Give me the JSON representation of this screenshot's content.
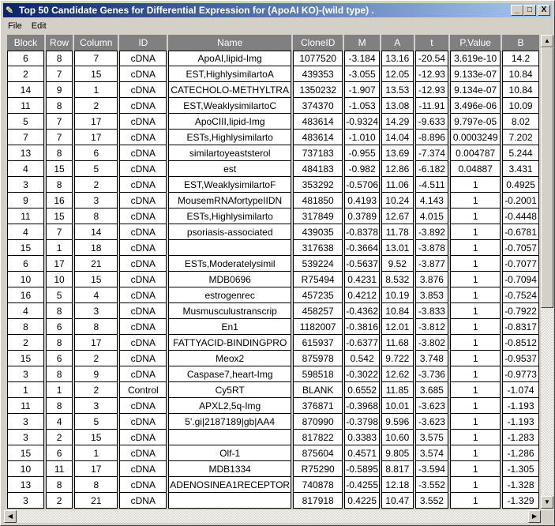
{
  "window": {
    "title": "Top 50 Candidate Genes for Differential Expression for (ApoAI KO)-(wild type) .",
    "buttons": {
      "minimize": "_",
      "maximize": "□",
      "close": "X"
    }
  },
  "menu": [
    "File",
    "Edit"
  ],
  "table": {
    "columns": [
      "Block",
      "Row",
      "Column",
      "ID",
      "Name",
      "CloneID",
      "M",
      "A",
      "t",
      "P.Value",
      "B"
    ],
    "rows": [
      [
        "6",
        "8",
        "7",
        "cDNA",
        "ApoAI,lipid-Img",
        "1077520",
        "-3.184",
        "13.16",
        "-20.54",
        "3.619e-10",
        "14.2"
      ],
      [
        "2",
        "7",
        "15",
        "cDNA",
        "EST,HighlysimilartoA",
        "439353",
        "-3.055",
        "12.05",
        "-12.93",
        "9.133e-07",
        "10.84"
      ],
      [
        "14",
        "9",
        "1",
        "cDNA",
        "CATECHOLO-METHYLTRA",
        "1350232",
        "-1.907",
        "13.53",
        "-12.93",
        "9.134e-07",
        "10.84"
      ],
      [
        "11",
        "8",
        "2",
        "cDNA",
        "EST,WeaklysimilartoC",
        "374370",
        "-1.053",
        "13.08",
        "-11.91",
        "3.496e-06",
        "10.09"
      ],
      [
        "5",
        "7",
        "17",
        "cDNA",
        "ApoCIII,lipid-Img",
        "483614",
        "-0.9324",
        "14.29",
        "-9.633",
        "9.797e-05",
        "8.02"
      ],
      [
        "7",
        "7",
        "17",
        "cDNA",
        "ESTs,Highlysimilarto",
        "483614",
        "-1.010",
        "14.04",
        "-8.896",
        "0.0003249",
        "7.202"
      ],
      [
        "13",
        "8",
        "6",
        "cDNA",
        "similartoyeaststerol",
        "737183",
        "-0.955",
        "13.69",
        "-7.374",
        "0.004787",
        "5.244"
      ],
      [
        "4",
        "15",
        "5",
        "cDNA",
        "est",
        "484183",
        "-0.982",
        "12.86",
        "-6.182",
        "0.04887",
        "3.431"
      ],
      [
        "3",
        "8",
        "2",
        "cDNA",
        "EST,WeaklysimilartoF",
        "353292",
        "-0.5706",
        "11.06",
        "-4.511",
        "1",
        "0.4925"
      ],
      [
        "9",
        "16",
        "3",
        "cDNA",
        "MousemRNAfortypeIIDN",
        "481850",
        "0.4193",
        "10.24",
        "4.143",
        "1",
        "-0.2001"
      ],
      [
        "11",
        "15",
        "8",
        "cDNA",
        "ESTs,Highlysimilarto",
        "317849",
        "0.3789",
        "12.67",
        "4.015",
        "1",
        "-0.4448"
      ],
      [
        "4",
        "7",
        "14",
        "cDNA",
        "psoriasis-associated",
        "439035",
        "-0.8378",
        "11.78",
        "-3.892",
        "1",
        "-0.6781"
      ],
      [
        "15",
        "1",
        "18",
        "cDNA",
        "",
        "317638",
        "-0.3664",
        "13.01",
        "-3.878",
        "1",
        "-0.7057"
      ],
      [
        "6",
        "17",
        "21",
        "cDNA",
        "ESTs,Moderatelysimil",
        "539224",
        "-0.5637",
        "9.52",
        "-3.877",
        "1",
        "-0.7077"
      ],
      [
        "10",
        "10",
        "15",
        "cDNA",
        "MDB0696",
        "R75494",
        "0.4231",
        "8.532",
        "3.876",
        "1",
        "-0.7094"
      ],
      [
        "16",
        "5",
        "4",
        "cDNA",
        "estrogenrec",
        "457235",
        "0.4212",
        "10.19",
        "3.853",
        "1",
        "-0.7524"
      ],
      [
        "4",
        "8",
        "3",
        "cDNA",
        "Musmusculustranscrip",
        "458257",
        "-0.4362",
        "10.84",
        "-3.833",
        "1",
        "-0.7922"
      ],
      [
        "8",
        "6",
        "8",
        "cDNA",
        "En1",
        "1182007",
        "-0.3816",
        "12.01",
        "-3.812",
        "1",
        "-0.8317"
      ],
      [
        "2",
        "8",
        "17",
        "cDNA",
        "FATTYACID-BINDINGPRO",
        "615937",
        "-0.6377",
        "11.68",
        "-3.802",
        "1",
        "-0.8512"
      ],
      [
        "15",
        "6",
        "2",
        "cDNA",
        "Meox2",
        "875978",
        "0.542",
        "9.722",
        "3.748",
        "1",
        "-0.9537"
      ],
      [
        "3",
        "8",
        "9",
        "cDNA",
        "Caspase7,heart-Img",
        "598518",
        "-0.3022",
        "12.62",
        "-3.736",
        "1",
        "-0.9773"
      ],
      [
        "1",
        "1",
        "2",
        "Control",
        "Cy5RT",
        "BLANK",
        "0.6552",
        "11.85",
        "3.685",
        "1",
        "-1.074"
      ],
      [
        "11",
        "8",
        "3",
        "cDNA",
        "APXL2,5q-Img",
        "376871",
        "-0.3968",
        "10.01",
        "-3.623",
        "1",
        "-1.193"
      ],
      [
        "3",
        "4",
        "5",
        "cDNA",
        "5'.gi|2187189|gb|AA4",
        "870990",
        "-0.3798",
        "9.596",
        "-3.623",
        "1",
        "-1.193"
      ],
      [
        "3",
        "2",
        "15",
        "cDNA",
        "",
        "817822",
        "0.3383",
        "10.60",
        "3.575",
        "1",
        "-1.283"
      ],
      [
        "15",
        "6",
        "1",
        "cDNA",
        "Olf-1",
        "875604",
        "0.4571",
        "9.805",
        "3.574",
        "1",
        "-1.286"
      ],
      [
        "10",
        "11",
        "17",
        "cDNA",
        "MDB1334",
        "R75290",
        "-0.5895",
        "8.817",
        "-3.594",
        "1",
        "-1.305"
      ],
      [
        "13",
        "8",
        "8",
        "cDNA",
        "ADENOSINEA1RECEPTOR",
        "740878",
        "-0.4255",
        "12.18",
        "-3.552",
        "1",
        "-1.328"
      ],
      [
        "3",
        "2",
        "21",
        "cDNA",
        "",
        "817918",
        "0.4225",
        "10.47",
        "3.552",
        "1",
        "-1.329"
      ]
    ]
  },
  "scrollbar": {
    "vertical_position_fraction": 0.0
  }
}
